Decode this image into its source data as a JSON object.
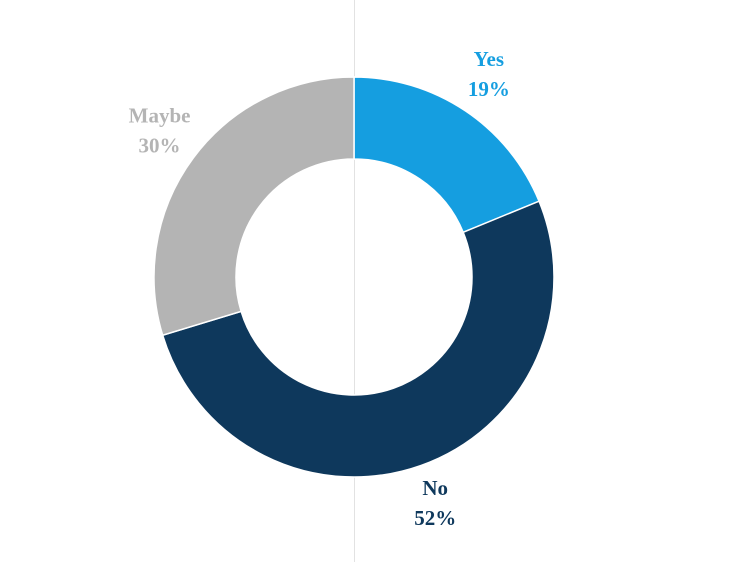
{
  "chart_data": {
    "type": "donut",
    "categories": [
      "Yes",
      "No",
      "Maybe"
    ],
    "values": [
      19,
      52,
      30
    ],
    "value_labels": [
      "19%",
      "52%",
      "30%"
    ],
    "colors": [
      "#159ee0",
      "#0e385c",
      "#b4b4b4"
    ]
  }
}
